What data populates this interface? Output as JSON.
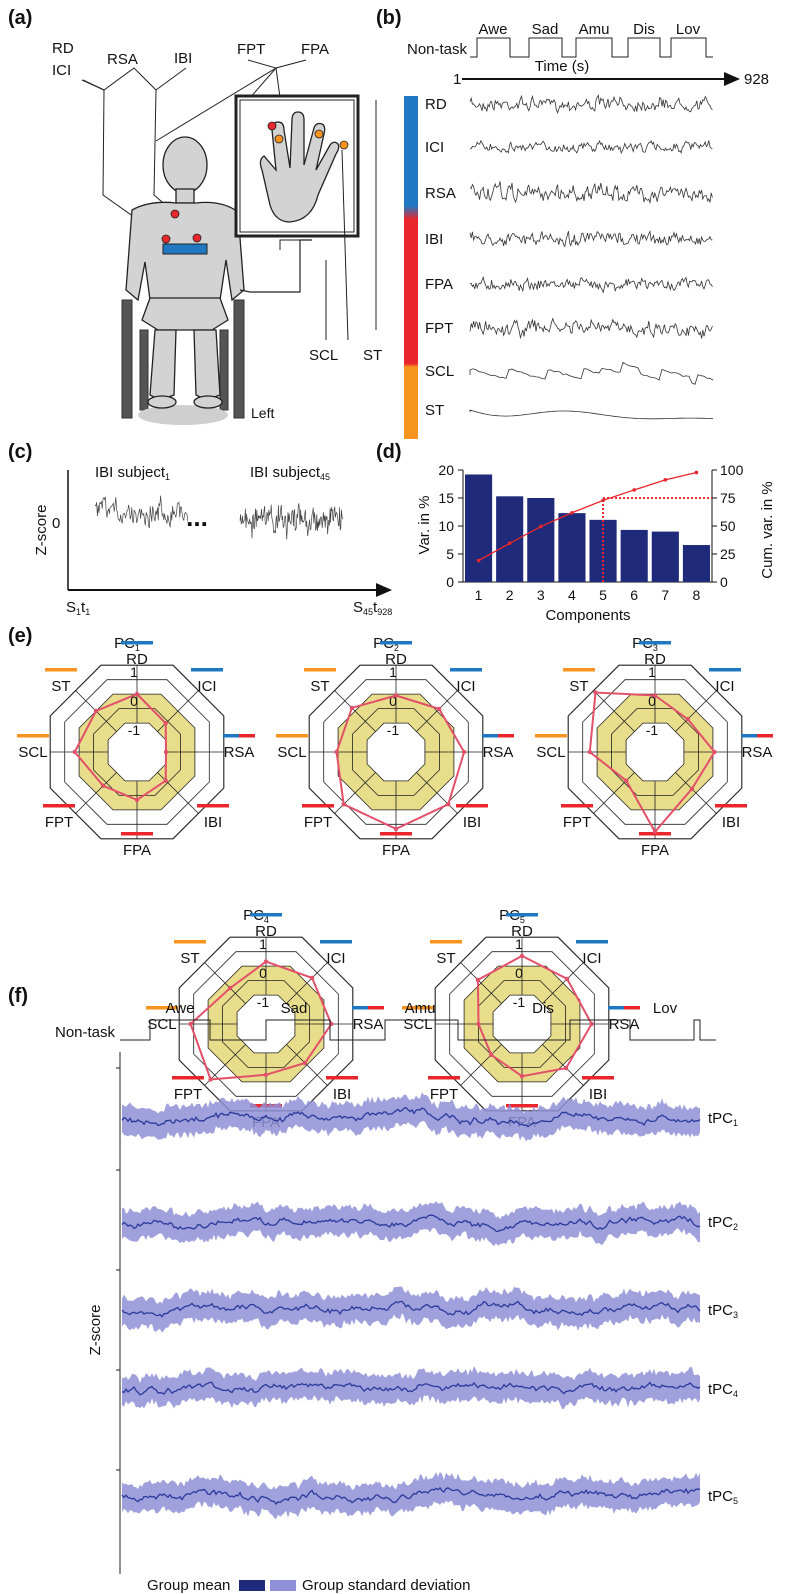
{
  "panel_labels": [
    "(a)",
    "(b)",
    "(c)",
    "(d)",
    "(e)",
    "(f)"
  ],
  "colors": {
    "cardiac_blue": "#1f78c1",
    "respiration_red": "#e8262c",
    "electrodermal_orange": "#f7941d",
    "bar_navy": "#1f2a7a",
    "cumvar_red": "#e8262c",
    "radar_fill": "#e8dd8a",
    "radar_line": "#e3506a",
    "band_fill": "#8e8fd6",
    "mean_line": "#2b3a9c"
  },
  "panel_a": {
    "sensor_labels": {
      "rd": "RD",
      "ici": "ICI",
      "rsa": "RSA",
      "ibi": "IBI",
      "fpt": "FPT",
      "fpa": "FPA",
      "scl": "SCL",
      "st": "ST"
    },
    "side_label": "Left"
  },
  "panel_b": {
    "non_task": "Non-task",
    "conditions": [
      "Awe",
      "Sad",
      "Amu",
      "Dis",
      "Lov"
    ],
    "time_label": "Time (s)",
    "time_start": "1",
    "time_end": "928",
    "signals": [
      "RD",
      "ICI",
      "RSA",
      "IBI",
      "FPA",
      "FPT",
      "SCL",
      "ST"
    ]
  },
  "panel_c": {
    "ylabel": "Z-score",
    "ytick": "0",
    "subject1": {
      "base": "IBI subject",
      "sub": "1"
    },
    "subject45": {
      "base": "IBI subject",
      "sub": "45"
    },
    "ellipsis": "...",
    "x_start": {
      "s": "S",
      "s_sub": "1",
      "t": "t",
      "t_sub": "1"
    },
    "x_end": {
      "s": "S",
      "s_sub": "45",
      "t": "t",
      "t_sub": "928"
    }
  },
  "chart_data": [
    {
      "type": "bar",
      "categories": [
        "1",
        "2",
        "3",
        "4",
        "5",
        "6",
        "7",
        "8"
      ],
      "series": [
        {
          "name": "Var. in %",
          "values": [
            19.2,
            15.3,
            15.0,
            12.3,
            11.1,
            9.3,
            9.0,
            6.6
          ]
        },
        {
          "name": "Cum. var. in %",
          "values": [
            19.2,
            34.5,
            49.5,
            61.8,
            72.9,
            82.2,
            91.2,
            97.8
          ]
        }
      ],
      "xlabel": "Components",
      "ylabel": "Var. in %",
      "y2label": "Cum. var. in %",
      "ylim": [
        0,
        20
      ],
      "y2lim": [
        0,
        100
      ],
      "yticks": [
        "0",
        "5",
        "10",
        "15",
        "20"
      ],
      "y2ticks": [
        "0",
        "25",
        "50",
        "75",
        "100"
      ],
      "threshold": {
        "component": 5,
        "cum_var": 75
      }
    },
    {
      "type": "radar",
      "axes": [
        "RD",
        "ICI",
        "RSA",
        "IBI",
        "FPA",
        "FPT",
        "SCL",
        "ST"
      ],
      "rlim": [
        -2,
        1
      ],
      "rings": [
        "1",
        "0",
        "-1"
      ],
      "loadings": [
        {
          "name": "PC",
          "sub": "1",
          "values": [
            0.0,
            -0.6,
            -1.0,
            -0.6,
            -0.35,
            -0.35,
            0.15,
            0.0
          ]
        },
        {
          "name": "PC",
          "sub": "2",
          "values": [
            -0.05,
            0.1,
            0.35,
            0.55,
            0.65,
            0.55,
            0.05,
            0.15
          ]
        },
        {
          "name": "PC",
          "sub": "3",
          "values": [
            -0.05,
            -0.4,
            0.05,
            -0.2,
            0.75,
            -0.6,
            0.25,
            0.9
          ]
        },
        {
          "name": "PC",
          "sub": "4",
          "values": [
            0.15,
            0.25,
            0.25,
            -0.1,
            -0.25,
            0.7,
            0.6,
            -0.25
          ]
        },
        {
          "name": "PC",
          "sub": "5",
          "values": [
            0.35,
            0.2,
            0.4,
            0.15,
            -0.2,
            -0.5,
            -0.5,
            0.15
          ]
        }
      ]
    },
    {
      "type": "area",
      "ylabel": "Z-score",
      "non_task": "Non-task",
      "conditions": [
        "Awe",
        "Sad",
        "Amu",
        "Dis",
        "Lov"
      ],
      "series": [
        {
          "name": "tPC",
          "sub": "1"
        },
        {
          "name": "tPC",
          "sub": "2"
        },
        {
          "name": "tPC",
          "sub": "3"
        },
        {
          "name": "tPC",
          "sub": "4"
        },
        {
          "name": "tPC",
          "sub": "5"
        }
      ],
      "legend": [
        "Group mean",
        "Group standard deviation"
      ]
    }
  ]
}
